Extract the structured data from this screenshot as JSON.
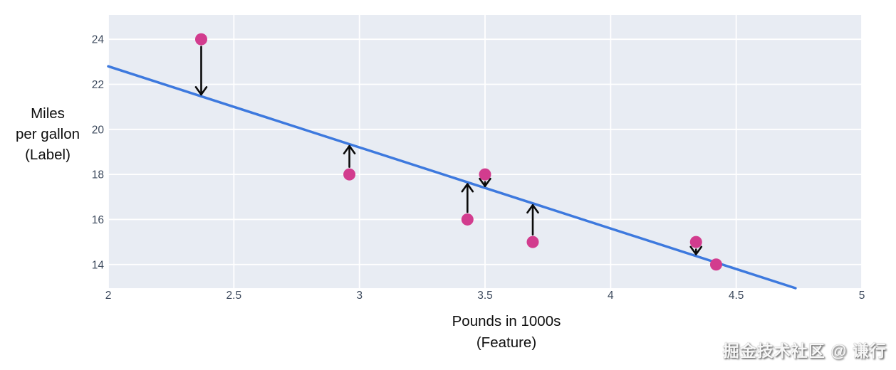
{
  "watermark": {
    "text": "掘金技术社区 @ 谦行"
  },
  "labels": {
    "y_title_lines": [
      "Miles",
      "per gallon",
      "(Label)"
    ],
    "x_title_lines": [
      "Pounds in 1000s",
      "(Feature)"
    ]
  },
  "chart_data": {
    "type": "scatter",
    "title": "",
    "xlabel": "Pounds in 1000s (Feature)",
    "ylabel": "Miles per gallon (Label)",
    "xlim": [
      2,
      5
    ],
    "ylim": [
      12.95,
      25.08
    ],
    "x_ticks": [
      2,
      2.5,
      3,
      3.5,
      4,
      4.5,
      5
    ],
    "y_ticks": [
      14,
      16,
      18,
      20,
      22,
      24
    ],
    "grid": true,
    "legend": "none",
    "points": [
      {
        "x": 2.37,
        "y": 24,
        "residual_arrow": "down"
      },
      {
        "x": 2.96,
        "y": 18,
        "residual_arrow": "up"
      },
      {
        "x": 3.43,
        "y": 16,
        "residual_arrow": "up"
      },
      {
        "x": 3.5,
        "y": 18,
        "residual_arrow": "down"
      },
      {
        "x": 3.69,
        "y": 15,
        "residual_arrow": "up"
      },
      {
        "x": 4.34,
        "y": 15,
        "residual_arrow": "down"
      },
      {
        "x": 4.42,
        "y": 14,
        "residual_arrow": "none"
      }
    ],
    "regression_line": {
      "slope": -3.6,
      "intercept": 30,
      "x_start": 2,
      "clip_y_min": 12.95
    },
    "colors": {
      "plot_bg": "#e8ecf3",
      "grid": "#ffffff",
      "line": "#3d79de",
      "point": "#d23c8e",
      "arrow": "#0b0b0b",
      "tick_label": "#3e4b5e",
      "axis_title": "#0e0e0e"
    }
  }
}
